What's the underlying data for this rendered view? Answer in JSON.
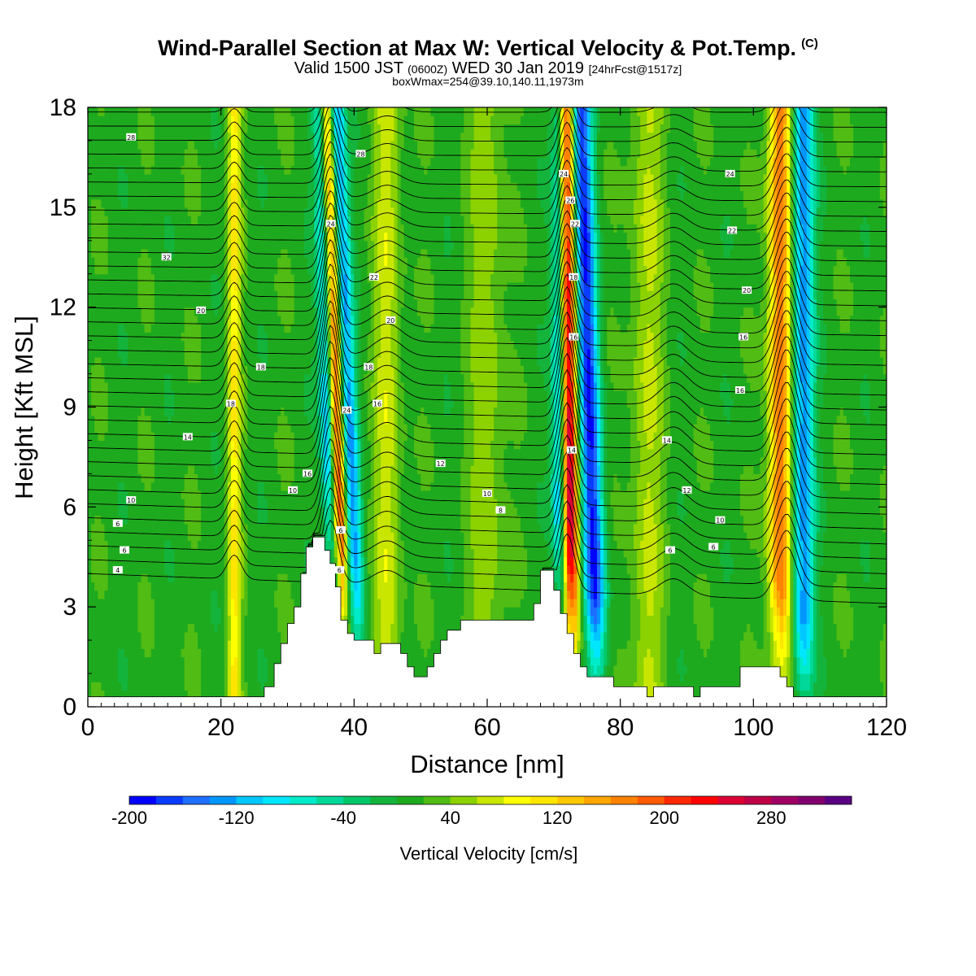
{
  "header": {
    "title": "Wind-Parallel Section at Max W: Vertical Velocity & Pot.Temp.",
    "title_mark": "(C)",
    "valid_a": "Valid 1500 JST",
    "valid_b": "(0600Z)",
    "valid_c": "WED 30 Jan 2019",
    "valid_d": "[24hrFcst@1517z]",
    "box": "boxWmax=254@39.10,140.11,1973m"
  },
  "chart_data": {
    "type": "heatmap",
    "xlabel": "Distance [nm]",
    "ylabel": "Height [Kft MSL]",
    "xlim": [
      0,
      120
    ],
    "ylim": [
      0,
      18
    ],
    "x_ticks": [
      "0",
      "20",
      "40",
      "60",
      "80",
      "100",
      "120"
    ],
    "y_ticks": [
      "0",
      "3",
      "6",
      "9",
      "12",
      "15",
      "18"
    ],
    "colorbar": {
      "title": "Vertical Velocity [cm/s]",
      "labels": [
        "-200",
        "-120",
        "-40",
        "40",
        "120",
        "200",
        "280"
      ],
      "colors": [
        "#0000ff",
        "#0a3cff",
        "#1e6eff",
        "#0096ff",
        "#00c8ff",
        "#00e6ff",
        "#00ebc8",
        "#00d89a",
        "#00c86a",
        "#14b43c",
        "#1eaa1e",
        "#50bc14",
        "#8cd200",
        "#c8e600",
        "#ffff00",
        "#ffe600",
        "#ffc800",
        "#ffa500",
        "#ff8200",
        "#ff5a00",
        "#ff2800",
        "#ff0000",
        "#dc0032",
        "#be0046",
        "#a00064",
        "#82006e",
        "#5a0082"
      ]
    },
    "terrain_nm_kft": [
      [
        0,
        0.3
      ],
      [
        26.5,
        0.3
      ],
      [
        26.5,
        0.6
      ],
      [
        28,
        0.6
      ],
      [
        28,
        1.3
      ],
      [
        29,
        1.3
      ],
      [
        29,
        1.9
      ],
      [
        30,
        1.9
      ],
      [
        30,
        2.5
      ],
      [
        31,
        2.5
      ],
      [
        31,
        3.0
      ],
      [
        32,
        3.0
      ],
      [
        32,
        4.0
      ],
      [
        32.8,
        4.0
      ],
      [
        32.8,
        4.8
      ],
      [
        33.8,
        4.8
      ],
      [
        33.8,
        5.1
      ],
      [
        35.6,
        5.1
      ],
      [
        35.6,
        4.7
      ],
      [
        36.4,
        4.7
      ],
      [
        36.4,
        4.3
      ],
      [
        37.2,
        4.3
      ],
      [
        37.2,
        3.6
      ],
      [
        38,
        3.6
      ],
      [
        38,
        2.6
      ],
      [
        39,
        2.6
      ],
      [
        39,
        2.2
      ],
      [
        40,
        2.2
      ],
      [
        40,
        2.0
      ],
      [
        43,
        2.0
      ],
      [
        43,
        1.6
      ],
      [
        44,
        1.6
      ],
      [
        44,
        1.9
      ],
      [
        47,
        1.9
      ],
      [
        47,
        1.6
      ],
      [
        48,
        1.6
      ],
      [
        48,
        1.2
      ],
      [
        49,
        1.2
      ],
      [
        49,
        0.9
      ],
      [
        51,
        0.9
      ],
      [
        51,
        1.2
      ],
      [
        52,
        1.2
      ],
      [
        52,
        1.6
      ],
      [
        53,
        1.6
      ],
      [
        53,
        2.0
      ],
      [
        54,
        2.0
      ],
      [
        54,
        2.3
      ],
      [
        56,
        2.3
      ],
      [
        56,
        2.6
      ],
      [
        67,
        2.6
      ],
      [
        67,
        3.1
      ],
      [
        68,
        3.1
      ],
      [
        68,
        4.1
      ],
      [
        70,
        4.1
      ],
      [
        70,
        3.5
      ],
      [
        71,
        3.5
      ],
      [
        71,
        2.8
      ],
      [
        72,
        2.8
      ],
      [
        72,
        2.2
      ],
      [
        73,
        2.2
      ],
      [
        73,
        1.6
      ],
      [
        74,
        1.6
      ],
      [
        74,
        1.2
      ],
      [
        75,
        1.2
      ],
      [
        75,
        0.9
      ],
      [
        79,
        0.9
      ],
      [
        79,
        0.6
      ],
      [
        84,
        0.6
      ],
      [
        84,
        0.3
      ],
      [
        85,
        0.3
      ],
      [
        85,
        0.6
      ],
      [
        91,
        0.6
      ],
      [
        91,
        0.3
      ],
      [
        92,
        0.3
      ],
      [
        92,
        0.6
      ],
      [
        98,
        0.6
      ],
      [
        98,
        1.2
      ],
      [
        104,
        1.2
      ],
      [
        104,
        0.9
      ],
      [
        105,
        0.9
      ],
      [
        105,
        0.6
      ],
      [
        106,
        0.6
      ],
      [
        106,
        0.3
      ],
      [
        120,
        0.3
      ]
    ],
    "features": [
      {
        "x_nm": 37.6,
        "sign": 1,
        "amp": 280,
        "width_nm": 1.1,
        "tilt_nm_per_kft": -0.15
      },
      {
        "x_nm": 36.6,
        "sign": -1,
        "amp": 200,
        "width_nm": 1.3,
        "tilt_nm_per_kft": -0.1
      },
      {
        "x_nm": 39.8,
        "sign": -1,
        "amp": 140,
        "width_nm": 1.2,
        "tilt_nm_per_kft": -0.2
      },
      {
        "x_nm": 72.3,
        "sign": 1,
        "amp": 290,
        "width_nm": 1.3,
        "tilt_nm_per_kft": -0.05
      },
      {
        "x_nm": 71.0,
        "sign": -1,
        "amp": 180,
        "width_nm": 1.2,
        "tilt_nm_per_kft": 0.0
      },
      {
        "x_nm": 75.8,
        "sign": -1,
        "amp": 190,
        "width_nm": 1.6,
        "tilt_nm_per_kft": -0.15
      },
      {
        "x_nm": 104.0,
        "sign": 1,
        "amp": 170,
        "width_nm": 1.7,
        "tilt_nm_per_kft": 0.0
      },
      {
        "x_nm": 107.5,
        "sign": -1,
        "amp": 150,
        "width_nm": 1.6,
        "tilt_nm_per_kft": 0.0
      },
      {
        "x_nm": 22.0,
        "sign": 1,
        "amp": 90,
        "width_nm": 1.0,
        "tilt_nm_per_kft": 0.0
      },
      {
        "x_nm": 45.0,
        "sign": 1,
        "amp": 60,
        "width_nm": 2.0,
        "tilt_nm_per_kft": 0.0
      },
      {
        "x_nm": 84.0,
        "sign": 1,
        "amp": 50,
        "width_nm": 2.5,
        "tilt_nm_per_kft": 0.0
      },
      {
        "x_nm": 60.0,
        "sign": 1,
        "amp": 45,
        "width_nm": 2.5,
        "tilt_nm_per_kft": 0.0
      }
    ],
    "contour_labels": [
      {
        "text": "28",
        "x": 6.5,
        "y": 17.1
      },
      {
        "text": "28",
        "x": 41.0,
        "y": 16.6
      },
      {
        "text": "24",
        "x": 71.5,
        "y": 16.0
      },
      {
        "text": "24",
        "x": 96.5,
        "y": 16.0
      },
      {
        "text": "26",
        "x": 72.5,
        "y": 15.2
      },
      {
        "text": "24",
        "x": 36.5,
        "y": 14.5
      },
      {
        "text": "22",
        "x": 73.2,
        "y": 14.5
      },
      {
        "text": "22",
        "x": 96.8,
        "y": 14.3
      },
      {
        "text": "32",
        "x": 11.8,
        "y": 13.5
      },
      {
        "text": "22",
        "x": 43.0,
        "y": 12.9
      },
      {
        "text": "18",
        "x": 73.0,
        "y": 12.9
      },
      {
        "text": "20",
        "x": 99.0,
        "y": 12.5
      },
      {
        "text": "20",
        "x": 17.0,
        "y": 11.9
      },
      {
        "text": "20",
        "x": 45.5,
        "y": 11.6
      },
      {
        "text": "16",
        "x": 73.0,
        "y": 11.1
      },
      {
        "text": "16",
        "x": 98.5,
        "y": 11.1
      },
      {
        "text": "18",
        "x": 26.0,
        "y": 10.2
      },
      {
        "text": "18",
        "x": 42.2,
        "y": 10.2
      },
      {
        "text": "16",
        "x": 98.0,
        "y": 9.5
      },
      {
        "text": "18",
        "x": 21.5,
        "y": 9.1
      },
      {
        "text": "16",
        "x": 43.5,
        "y": 9.1
      },
      {
        "text": "24",
        "x": 38.9,
        "y": 8.9
      },
      {
        "text": "14",
        "x": 15.0,
        "y": 8.1
      },
      {
        "text": "14",
        "x": 87.0,
        "y": 8.0
      },
      {
        "text": "14",
        "x": 72.7,
        "y": 7.7
      },
      {
        "text": "12",
        "x": 53.0,
        "y": 7.3
      },
      {
        "text": "16",
        "x": 33.0,
        "y": 7.0
      },
      {
        "text": "12",
        "x": 90.0,
        "y": 6.5
      },
      {
        "text": "10",
        "x": 30.8,
        "y": 6.5
      },
      {
        "text": "10",
        "x": 60.0,
        "y": 6.4
      },
      {
        "text": "10",
        "x": 6.5,
        "y": 6.2
      },
      {
        "text": "8",
        "x": 62.0,
        "y": 5.9
      },
      {
        "text": "10",
        "x": 95.0,
        "y": 5.6
      },
      {
        "text": "6",
        "x": 4.5,
        "y": 5.5
      },
      {
        "text": "6",
        "x": 38.0,
        "y": 5.3
      },
      {
        "text": "6",
        "x": 94.0,
        "y": 4.8
      },
      {
        "text": "6",
        "x": 87.5,
        "y": 4.7
      },
      {
        "text": "6",
        "x": 5.5,
        "y": 4.7
      },
      {
        "text": "4",
        "x": 4.5,
        "y": 4.1
      },
      {
        "text": "6",
        "x": 37.8,
        "y": 4.1
      }
    ]
  }
}
